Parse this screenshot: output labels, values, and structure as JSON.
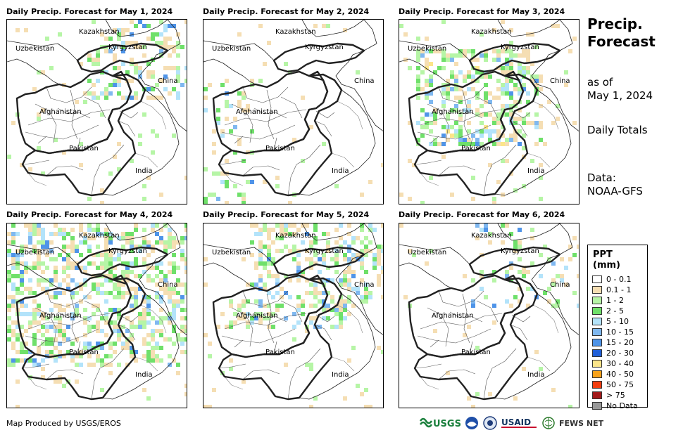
{
  "panels": [
    {
      "title": "Daily Precip. Forecast for May 1, 2024",
      "intensity": 0.55,
      "pattern": "north-east"
    },
    {
      "title": "Daily Precip. Forecast for May 2, 2024",
      "intensity": 0.35,
      "pattern": "west"
    },
    {
      "title": "Daily Precip. Forecast for May 3, 2024",
      "intensity": 0.75,
      "pattern": "center"
    },
    {
      "title": "Daily Precip. Forecast for May 4, 2024",
      "intensity": 0.8,
      "pattern": "broad"
    },
    {
      "title": "Daily Precip. Forecast for May 5, 2024",
      "intensity": 0.7,
      "pattern": "north-band"
    },
    {
      "title": "Daily Precip. Forecast for May 6, 2024",
      "intensity": 0.25,
      "pattern": "sparse"
    }
  ],
  "place_labels": {
    "kazakhstan": "Kazakhstan",
    "uzbekistan": "Uzbekistan",
    "kyrgyzstan": "Kyrgyzstan",
    "china": "China",
    "afghanistan": "Afghanistan",
    "pakistan": "Pakistan",
    "india": "India"
  },
  "sidebar": {
    "title_line1": "Precip.",
    "title_line2": "Forecast",
    "asof_line1": "as of",
    "asof_line2": "May 1, 2024",
    "totals": "Daily Totals",
    "data_line1": "Data:",
    "data_line2": "NOAA-GFS"
  },
  "legend": {
    "title": "PPT (mm)",
    "items": [
      {
        "label": "0 - 0.1",
        "color": "#ffffff"
      },
      {
        "label": "0.1 - 1",
        "color": "#f5deb3"
      },
      {
        "label": "1 - 2",
        "color": "#b6f5a6"
      },
      {
        "label": "2 - 5",
        "color": "#6fe06a"
      },
      {
        "label": "5 - 10",
        "color": "#b3e3fa"
      },
      {
        "label": "10 - 15",
        "color": "#7fb8f0"
      },
      {
        "label": "15 - 20",
        "color": "#4f94e8"
      },
      {
        "label": "20 - 30",
        "color": "#1f5fd8"
      },
      {
        "label": "30 - 40",
        "color": "#fbe58a"
      },
      {
        "label": "40 - 50",
        "color": "#f7a21b"
      },
      {
        "label": "50 - 75",
        "color": "#f23d0f"
      },
      {
        "label": "> 75",
        "color": "#a31a1a"
      },
      {
        "label": "No Data",
        "color": "#999999"
      }
    ]
  },
  "footer": {
    "credit": "Map Produced by USGS/EROS",
    "logo_usgs": "USGS",
    "logo_usaid": "USAID",
    "logo_fews": "FEWS NET"
  }
}
